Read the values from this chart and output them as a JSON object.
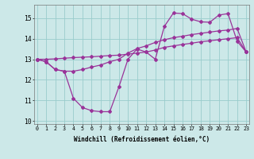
{
  "xlabel": "Windchill (Refroidissement éolien,°C)",
  "x": [
    0,
    1,
    2,
    3,
    4,
    5,
    6,
    7,
    8,
    9,
    10,
    11,
    12,
    13,
    14,
    15,
    16,
    17,
    18,
    19,
    20,
    21,
    22,
    23
  ],
  "line1": [
    13.0,
    12.88,
    12.5,
    12.42,
    11.1,
    10.65,
    10.5,
    10.45,
    10.45,
    11.65,
    13.0,
    13.5,
    13.35,
    13.0,
    14.6,
    15.25,
    15.22,
    14.95,
    14.82,
    14.8,
    15.15,
    15.22,
    13.88,
    13.35
  ],
  "line2": [
    13.0,
    13.0,
    13.02,
    13.05,
    13.08,
    13.1,
    13.12,
    13.15,
    13.18,
    13.2,
    13.25,
    13.3,
    13.35,
    13.45,
    13.58,
    13.65,
    13.72,
    13.78,
    13.85,
    13.9,
    13.95,
    14.0,
    14.05,
    13.35
  ],
  "line3": [
    13.0,
    12.88,
    12.5,
    12.42,
    12.42,
    12.5,
    12.62,
    12.72,
    12.88,
    13.0,
    13.3,
    13.52,
    13.65,
    13.82,
    13.95,
    14.05,
    14.12,
    14.2,
    14.26,
    14.32,
    14.38,
    14.42,
    14.5,
    13.35
  ],
  "line_color": "#993399",
  "bg_color": "#cce8e8",
  "grid_color": "#99cccc",
  "ylim": [
    9.85,
    15.65
  ],
  "yticks": [
    10,
    11,
    12,
    13,
    14,
    15
  ],
  "xlim": [
    -0.3,
    23.3
  ],
  "xtick_fontsize": 4.8,
  "ytick_fontsize": 5.8,
  "xlabel_fontsize": 5.5
}
